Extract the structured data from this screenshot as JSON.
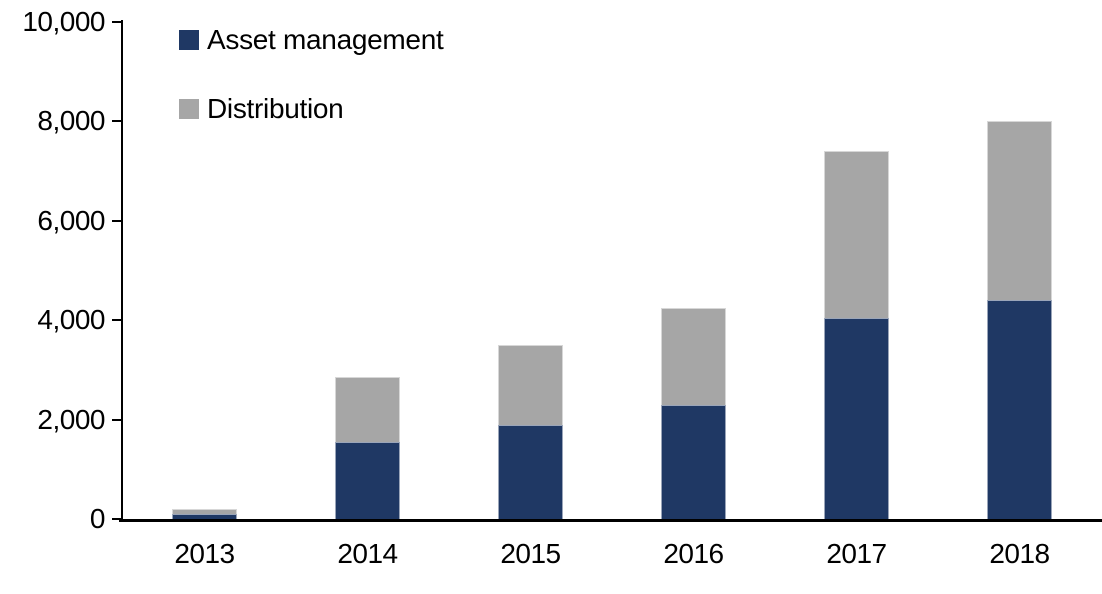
{
  "chart_data": {
    "type": "bar",
    "stacked": true,
    "title": "",
    "xlabel": "",
    "ylabel": "",
    "categories": [
      "2013",
      "2014",
      "2015",
      "2016",
      "2017",
      "2018"
    ],
    "series": [
      {
        "name": "Asset management",
        "color": "#1F3864",
        "values": [
          110,
          1550,
          1900,
          2300,
          4050,
          4400
        ]
      },
      {
        "name": "Distribution",
        "color": "#A6A6A6",
        "values": [
          90,
          1300,
          1600,
          1950,
          3350,
          3600
        ]
      }
    ],
    "ylim": [
      0,
      10000
    ],
    "yticks": [
      {
        "value": 0,
        "label": "0"
      },
      {
        "value": 2000,
        "label": "2,000"
      },
      {
        "value": 4000,
        "label": "4,000"
      },
      {
        "value": 6000,
        "label": "6,000"
      },
      {
        "value": 8000,
        "label": "8,000"
      },
      {
        "value": 10000,
        "label": "10,000"
      }
    ],
    "grid": false,
    "legend_position": "top-left",
    "axis_color": "#000000",
    "background_color": "#FFFFFF"
  },
  "legend": {
    "items": [
      {
        "label": "Asset management",
        "color": "#1F3864"
      },
      {
        "label": "Distribution",
        "color": "#A6A6A6"
      }
    ]
  }
}
